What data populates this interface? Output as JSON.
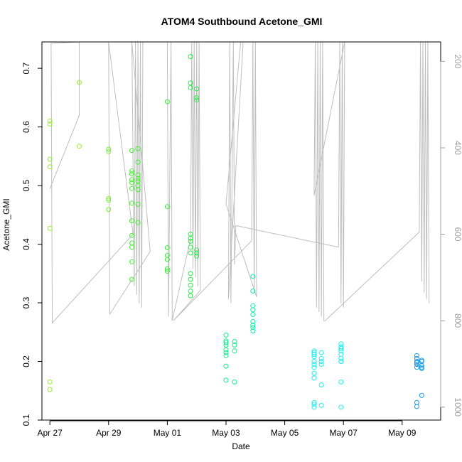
{
  "chart_data": {
    "type": "scatter",
    "title": "ATOM4 Southbound Acetone_GMI",
    "xlabel": "Date",
    "ylabel": "Acetone_GMI",
    "xlim": [
      "2018-04-26T17:30",
      "2018-05-10T07:30"
    ],
    "ylim": [
      0.1,
      0.745
    ],
    "x_ticks": [
      {
        "date": "2018-04-27",
        "label": "Apr 27"
      },
      {
        "date": "2018-04-29",
        "label": "Apr 29"
      },
      {
        "date": "2018-05-01",
        "label": "May 01"
      },
      {
        "date": "2018-05-03",
        "label": "May 03"
      },
      {
        "date": "2018-05-05",
        "label": "May 05"
      },
      {
        "date": "2018-05-07",
        "label": "May 07"
      },
      {
        "date": "2018-05-09",
        "label": "May 09"
      }
    ],
    "y_ticks": [
      0.1,
      0.2,
      0.3,
      0.4,
      0.5,
      0.6,
      0.7
    ],
    "secondary_axis": {
      "position": "right",
      "reversed": true,
      "range": [
        1030,
        155
      ],
      "ticks": [
        200,
        400,
        600,
        800,
        1000
      ],
      "color": "#a0a0a0"
    },
    "grid": false,
    "legend": "none",
    "marker": "open-circle",
    "colors": {
      "axis": "#000000",
      "profile_line": "#bebebe",
      "green_yellow": "#99ee33",
      "green": "#44ee33",
      "green_bright": "#22ee44",
      "spring_green": "#11ee88",
      "cyan_green": "#11eeaa",
      "cyan": "#22eeee",
      "sky_blue": "#1199ee"
    },
    "series": [
      {
        "x": "2018-04-27T00:00",
        "values": [
          0.61,
          0.605,
          0.545,
          0.532,
          0.427,
          0.165,
          0.152
        ],
        "color": "#99ee33"
      },
      {
        "x": "2018-04-28T00:00",
        "values": [
          0.676,
          0.567
        ],
        "color": "#99ee33"
      },
      {
        "x": "2018-04-29T00:00",
        "values": [
          0.562,
          0.558,
          0.478,
          0.475,
          0.459
        ],
        "color": "#77ee33"
      },
      {
        "x": "2018-04-29T19:00",
        "values": [
          0.56,
          0.525,
          0.52,
          0.51,
          0.505,
          0.495,
          0.47,
          0.44,
          0.415,
          0.402,
          0.395,
          0.37,
          0.34
        ],
        "color": "#44ee33"
      },
      {
        "x": "2018-04-30T00:00",
        "values": [
          0.563,
          0.54,
          0.518,
          0.512,
          0.508,
          0.5,
          0.493,
          0.468,
          0.437
        ],
        "color": "#44ee33"
      },
      {
        "x": "2018-05-01T00:00",
        "values": [
          0.643,
          0.464,
          0.394,
          0.381,
          0.374,
          0.358,
          0.354
        ],
        "color": "#33ee33"
      },
      {
        "x": "2018-05-01T19:00",
        "values": [
          0.72,
          0.675,
          0.667,
          0.417,
          0.41,
          0.405,
          0.395,
          0.385,
          0.35,
          0.34,
          0.33,
          0.32,
          0.312
        ],
        "color": "#22ee44"
      },
      {
        "x": "2018-05-02T00:00",
        "values": [
          0.665,
          0.65,
          0.646,
          0.39,
          0.385,
          0.38
        ],
        "color": "#22ee44"
      },
      {
        "x": "2018-05-03T00:00",
        "values": [
          0.245,
          0.235,
          0.232,
          0.228,
          0.22,
          0.215,
          0.21,
          0.192,
          0.168
        ],
        "color": "#11ee88"
      },
      {
        "x": "2018-05-03T07:00",
        "values": [
          0.234,
          0.228,
          0.218,
          0.165
        ],
        "color": "#11ee88"
      },
      {
        "x": "2018-05-03T22:00",
        "values": [
          0.345,
          0.32,
          0.295,
          0.288,
          0.28,
          0.268,
          0.262,
          0.258,
          0.252
        ],
        "color": "#11eeaa"
      },
      {
        "x": "2018-05-06T00:00",
        "values": [
          0.218,
          0.215,
          0.212,
          0.208,
          0.2,
          0.195,
          0.19,
          0.18,
          0.172,
          0.13,
          0.127,
          0.122
        ],
        "color": "#22eeee"
      },
      {
        "x": "2018-05-06T06:00",
        "values": [
          0.215,
          0.205,
          0.2,
          0.195,
          0.16,
          0.125
        ],
        "color": "#22eeee"
      },
      {
        "x": "2018-05-06T22:00",
        "values": [
          0.23,
          0.225,
          0.222,
          0.218,
          0.212,
          0.205,
          0.2,
          0.2,
          0.165,
          0.122
        ],
        "color": "#22eeee"
      },
      {
        "x": "2018-05-09T12:00",
        "values": [
          0.21,
          0.205,
          0.2,
          0.198,
          0.195,
          0.19,
          0.13,
          0.123
        ],
        "color": "#1199ee"
      },
      {
        "x": "2018-05-09T16:00",
        "values": [
          0.202,
          0.2,
          0.193,
          0.19,
          0.188,
          0.142
        ],
        "color": "#1199ee"
      }
    ],
    "profile_path": [
      [
        "2018-04-27T00:00",
        495
      ],
      [
        "2018-04-28T00:00",
        325
      ],
      [
        "2018-04-28T00:00",
        155
      ],
      [
        "2018-04-27T01:00",
        158
      ],
      [
        "2018-04-27T02:00",
        805
      ],
      [
        "2018-04-29T20:00",
        600
      ],
      [
        "2018-04-29T00:00",
        155
      ],
      [
        "2018-04-29T01:00",
        785
      ],
      [
        "2018-04-30T10:00",
        640
      ],
      [
        "2018-04-29T19:00",
        155
      ],
      [
        "2018-04-29T21:00",
        720
      ],
      [
        "2018-04-29T22:00",
        155
      ],
      [
        "2018-04-29T23:00",
        740
      ],
      [
        "2018-04-30T00:00",
        155
      ],
      [
        "2018-04-30T01:00",
        760
      ],
      [
        "2018-04-30T02:00",
        155
      ],
      [
        "2018-04-30T03:00",
        770
      ],
      [
        "2018-04-30T04:00",
        155
      ],
      [
        "2018-05-01T00:00",
        155
      ],
      [
        "2018-05-01T01:00",
        790
      ],
      [
        "2018-05-01T03:00",
        155
      ],
      [
        "2018-05-01T04:00",
        800
      ],
      [
        "2018-05-01T19:00",
        610
      ],
      [
        "2018-05-01T20:00",
        155
      ],
      [
        "2018-05-01T21:00",
        680
      ],
      [
        "2018-05-01T22:00",
        155
      ],
      [
        "2018-05-01T23:00",
        700
      ],
      [
        "2018-05-02T00:00",
        155
      ],
      [
        "2018-05-02T01:00",
        720
      ],
      [
        "2018-05-02T02:00",
        155
      ],
      [
        "2018-05-02T03:00",
        730
      ],
      [
        "2018-05-01T05:00",
        800
      ],
      [
        "2018-05-03T21:00",
        615
      ],
      [
        "2018-05-03T22:00",
        155
      ],
      [
        "2018-05-03T23:00",
        735
      ],
      [
        "2018-05-04T00:00",
        155
      ],
      [
        "2018-05-04T01:00",
        745
      ],
      [
        "2018-05-03T00:00",
        530
      ],
      [
        "2018-05-03T12:00",
        155
      ],
      [
        "2018-05-03T14:00",
        155
      ],
      [
        "2018-05-03T02:00",
        750
      ],
      [
        "2018-05-03T03:00",
        155
      ],
      [
        "2018-05-03T04:00",
        760
      ],
      [
        "2018-05-03T06:00",
        155
      ],
      [
        "2018-05-03T07:00",
        670
      ],
      [
        "2018-05-03T08:00",
        580
      ],
      [
        "2018-05-06T20:00",
        630
      ],
      [
        "2018-05-06T21:00",
        155
      ],
      [
        "2018-05-06T22:00",
        760
      ],
      [
        "2018-05-06T23:00",
        155
      ],
      [
        "2018-05-07T00:00",
        770
      ],
      [
        "2018-05-07T01:00",
        155
      ],
      [
        "2018-05-06T00:00",
        510
      ],
      [
        "2018-05-06T01:00",
        155
      ],
      [
        "2018-05-06T02:00",
        770
      ],
      [
        "2018-05-06T03:00",
        155
      ],
      [
        "2018-05-06T04:00",
        780
      ],
      [
        "2018-05-06T05:00",
        155
      ],
      [
        "2018-05-06T06:00",
        790
      ],
      [
        "2018-05-06T07:00",
        155
      ],
      [
        "2018-05-06T08:00",
        800
      ],
      [
        "2018-05-06T09:00",
        800
      ],
      [
        "2018-05-09T14:00",
        595
      ],
      [
        "2018-05-09T15:00",
        155
      ],
      [
        "2018-05-09T16:00",
        710
      ],
      [
        "2018-05-09T17:00",
        155
      ],
      [
        "2018-05-09T18:00",
        735
      ],
      [
        "2018-05-09T19:00",
        155
      ],
      [
        "2018-05-09T20:00",
        750
      ],
      [
        "2018-05-09T21:00",
        155
      ],
      [
        "2018-05-09T22:00",
        760
      ]
    ]
  }
}
